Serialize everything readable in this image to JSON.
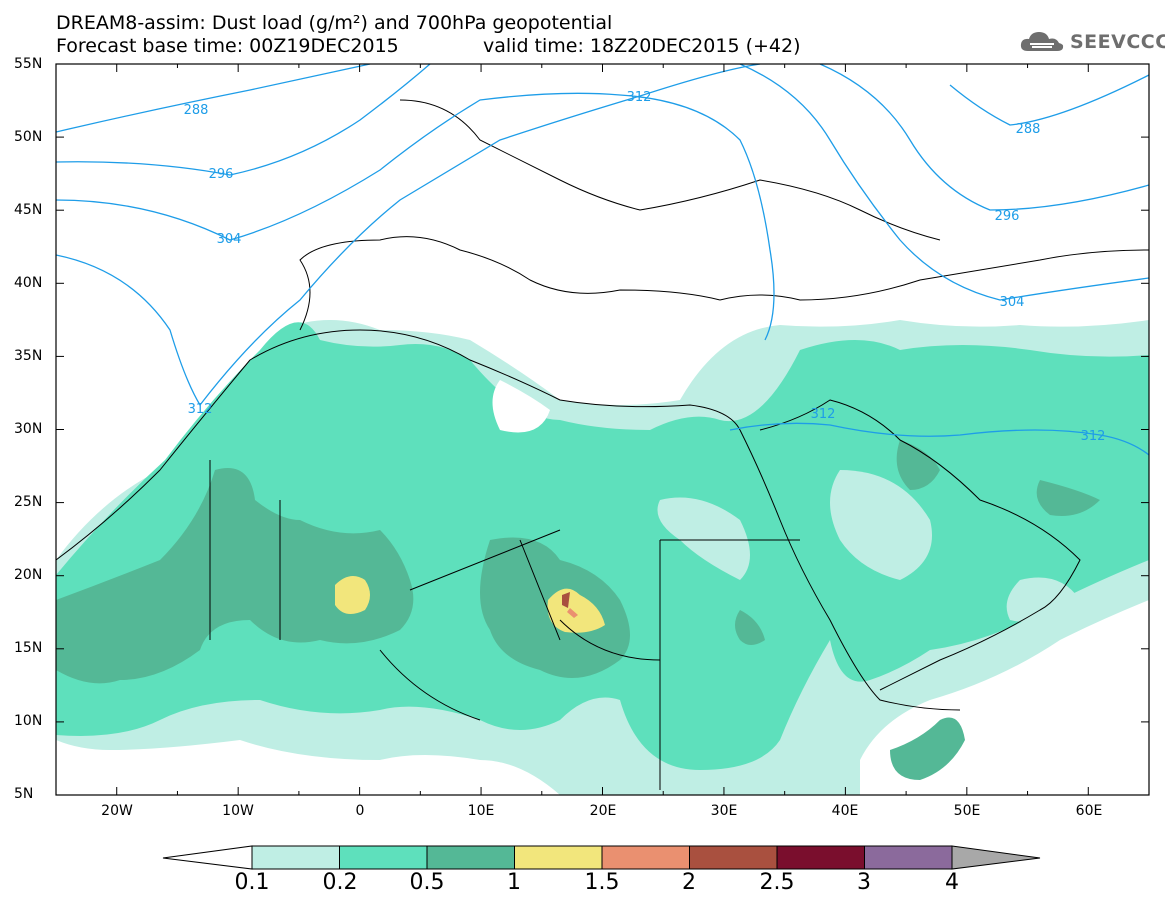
{
  "header": {
    "title_line1": "DREAM8-assim: Dust load (g/m²) and 700hPa geopotential",
    "title_line2": "Forecast base time: 00Z19DEC2015",
    "valid_time": "valid time: 18Z20DEC2015 (+42)"
  },
  "logo": {
    "text": "SEEVCCC",
    "icon": "cloud-icon"
  },
  "map": {
    "lat_labels": [
      "55N",
      "50N",
      "45N",
      "40N",
      "35N",
      "30N",
      "25N",
      "20N",
      "15N",
      "10N",
      "5N"
    ],
    "lon_labels": [
      "20W",
      "10W",
      "0",
      "10E",
      "20E",
      "30E",
      "40E",
      "50E",
      "60E"
    ],
    "contour_labels": [
      "288",
      "296",
      "304",
      "312",
      "312",
      "296",
      "288",
      "304",
      "312",
      "312"
    ],
    "region": {
      "lon_min": -25,
      "lon_max": 65,
      "lat_min": 5,
      "lat_max": 55
    }
  },
  "colorbar": {
    "labels": [
      "0.1",
      "0.2",
      "0.5",
      "1",
      "1.5",
      "2",
      "2.5",
      "3",
      "4"
    ],
    "colors": [
      "#bfeee4",
      "#5ee0bc",
      "#54b896",
      "#f2e67c",
      "#ea9070",
      "#a9503f",
      "#7a0e2d",
      "#8b6a9c",
      "#a8a8a8"
    ]
  },
  "colors": {
    "contour": "#1e9de8",
    "dust_01": "#bfeee4",
    "dust_02": "#5ee0bc",
    "dust_05": "#54b896",
    "dust_1": "#f2e67c",
    "dust_15": "#ea9070",
    "dust_2": "#a9503f"
  }
}
